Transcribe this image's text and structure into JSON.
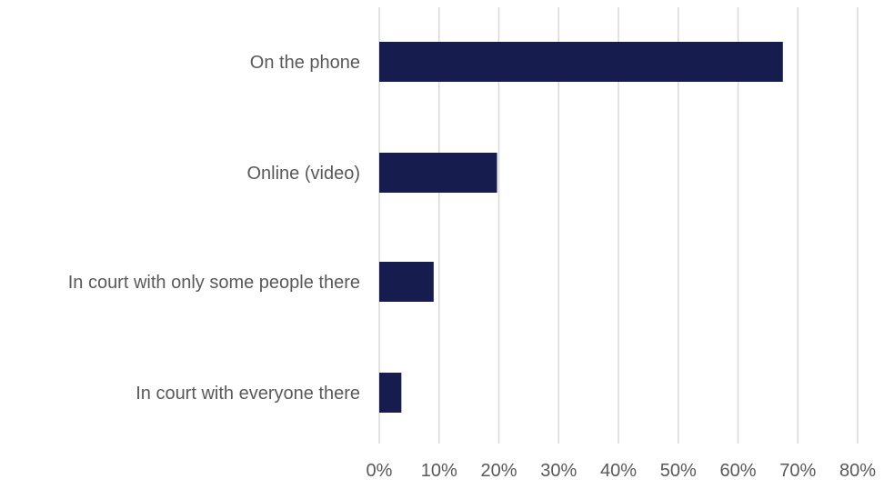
{
  "chart_data": {
    "type": "bar",
    "orientation": "horizontal",
    "categories": [
      "On the phone",
      "Online (video)",
      "In court with only some people there",
      "In court with everyone there"
    ],
    "values": [
      67.5,
      19.7,
      9.1,
      3.7
    ],
    "xlim": [
      0,
      80
    ],
    "ticks": [
      0,
      10,
      20,
      30,
      40,
      50,
      60,
      70,
      80
    ],
    "tick_labels": [
      "0%",
      "10%",
      "20%",
      "30%",
      "40%",
      "50%",
      "60%",
      "70%",
      "80%"
    ],
    "grid": true,
    "bar_color": "#161c4e",
    "grid_color": "#d9d9d9",
    "text_color": "#595959"
  }
}
